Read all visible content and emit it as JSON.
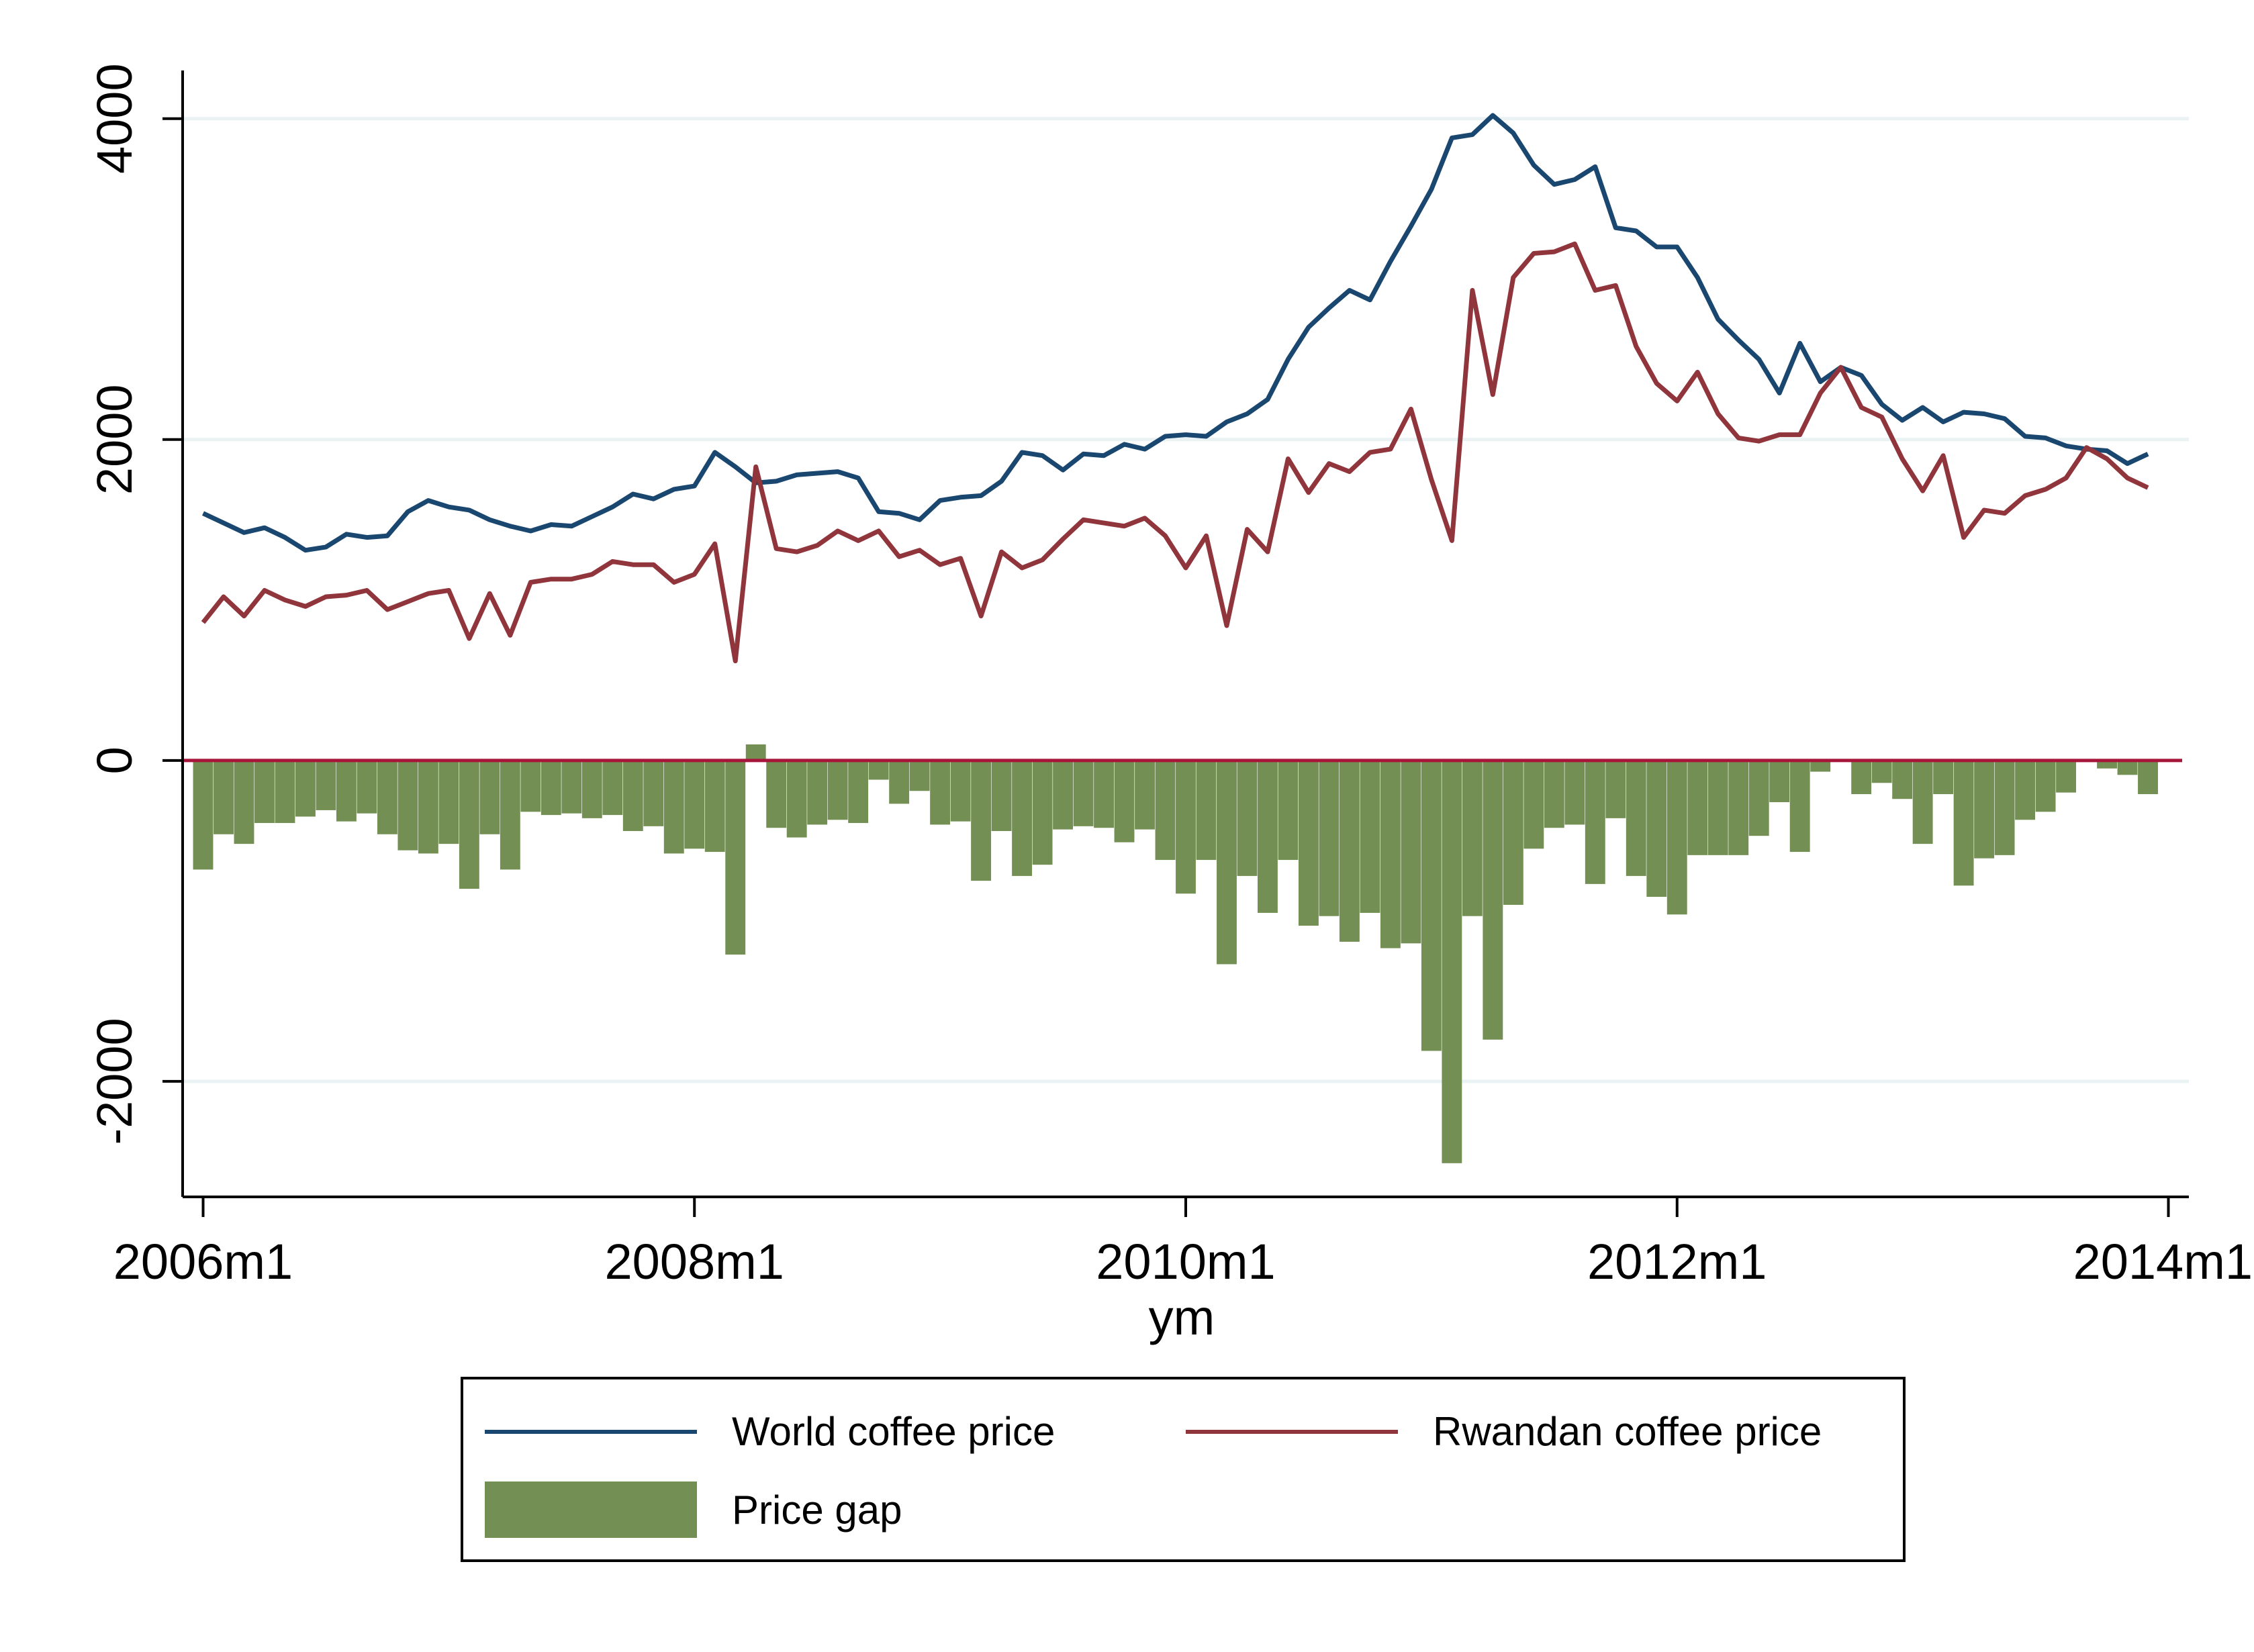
{
  "chart_data": {
    "type": "line+bar",
    "title": "",
    "xlabel": "ym",
    "ylabel": "",
    "x_start": "2006m1",
    "x_ticks": [
      "2006m1",
      "2008m1",
      "2010m1",
      "2012m1",
      "2014m1"
    ],
    "y_ticks": [
      "4000",
      "2000",
      "0",
      "-2000"
    ],
    "y_tick_values": [
      4000,
      2000,
      0,
      -2000
    ],
    "ylim": [
      -2720,
      4300
    ],
    "xlim_months": [
      -1,
      97
    ],
    "grid": true,
    "legend_position": "bottom",
    "colors": {
      "world": "#1a476f",
      "rwanda": "#90353b",
      "gap": "#748f53",
      "zero_line": "#a8153a",
      "grid": "#eaf2f3"
    },
    "series": [
      {
        "name": "World coffee price",
        "kind": "line",
        "values": [
          1540,
          1480,
          1420,
          1450,
          1390,
          1310,
          1330,
          1410,
          1390,
          1400,
          1550,
          1620,
          1580,
          1560,
          1500,
          1460,
          1430,
          1470,
          1460,
          1520,
          1580,
          1660,
          1630,
          1690,
          1710,
          1920,
          1830,
          1730,
          1740,
          1780,
          1790,
          1800,
          1760,
          1550,
          1540,
          1500,
          1620,
          1640,
          1650,
          1740,
          1920,
          1900,
          1810,
          1910,
          1900,
          1970,
          1940,
          2020,
          2030,
          2020,
          2110,
          2160,
          2250,
          2500,
          2700,
          2820,
          2930,
          2870,
          3110,
          3330,
          3560,
          3880,
          3900,
          4020,
          3910,
          3710,
          3590,
          3620,
          3700,
          3320,
          3300,
          3200,
          3200,
          3010,
          2750,
          2620,
          2500,
          2290,
          2600,
          2360,
          2450,
          2400,
          2220,
          2120,
          2200,
          2110,
          2170,
          2160,
          2130,
          2020,
          2010,
          1960,
          1940,
          1930,
          1850,
          1910
        ]
      },
      {
        "name": "Rwandan coffee price",
        "kind": "line",
        "values": [
          860,
          1020,
          900,
          1060,
          1000,
          960,
          1020,
          1030,
          1060,
          940,
          990,
          1040,
          1060,
          760,
          1040,
          780,
          1110,
          1130,
          1130,
          1160,
          1240,
          1220,
          1220,
          1110,
          1160,
          1350,
          620,
          1830,
          1320,
          1300,
          1340,
          1430,
          1370,
          1430,
          1270,
          1310,
          1220,
          1260,
          900,
          1300,
          1200,
          1250,
          1380,
          1500,
          1480,
          1460,
          1510,
          1400,
          1200,
          1400,
          840,
          1440,
          1300,
          1880,
          1670,
          1850,
          1800,
          1920,
          1940,
          2190,
          1750,
          1370,
          2930,
          2280,
          3010,
          3160,
          3170,
          3220,
          2930,
          2960,
          2580,
          2350,
          2240,
          2420,
          2160,
          2010,
          1990,
          2030,
          2030,
          2290,
          2450,
          2200,
          2140,
          1880,
          1680,
          1900,
          1390,
          1560,
          1540,
          1650,
          1690,
          1760,
          1950,
          1880,
          1760,
          1700
        ]
      },
      {
        "name": "Price gap",
        "kind": "bar",
        "values": [
          -680,
          -460,
          -520,
          -390,
          -390,
          -350,
          -310,
          -380,
          -330,
          -460,
          -560,
          -580,
          -520,
          -800,
          -460,
          -680,
          -320,
          -340,
          -330,
          -360,
          -340,
          -440,
          -410,
          -580,
          -550,
          -570,
          -1210,
          100,
          -420,
          -480,
          -400,
          -370,
          -390,
          -120,
          -270,
          -190,
          -400,
          -380,
          -750,
          -440,
          -720,
          -650,
          -430,
          -410,
          -420,
          -510,
          -430,
          -620,
          -830,
          -620,
          -1270,
          -720,
          -950,
          -620,
          -1030,
          -970,
          -1130,
          -950,
          -1170,
          -1140,
          -1810,
          -2510,
          -970,
          -1740,
          -900,
          -550,
          -420,
          -400,
          -770,
          -360,
          -720,
          -850,
          -960,
          -590,
          -590,
          -590,
          -470,
          -260,
          -570,
          -70,
          0,
          -210,
          -140,
          -240,
          -520,
          -210,
          -780,
          -610,
          -590,
          -370,
          -320,
          -200,
          -10,
          -50,
          -90,
          -210
        ]
      }
    ]
  },
  "legend": {
    "items": [
      {
        "label": "World coffee price"
      },
      {
        "label": "Rwandan coffee price"
      },
      {
        "label": "Price gap"
      }
    ]
  }
}
